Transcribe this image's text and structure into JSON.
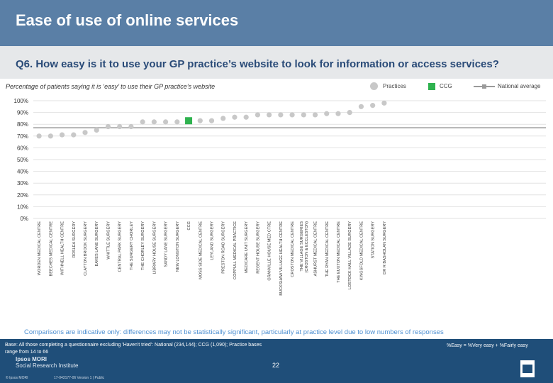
{
  "header": {
    "title": "Ease of use of online services",
    "question": "Q6. How easy is it to use your GP practice’s website to look for information or access services?",
    "subtitle": "Percentage of patients saying it is ‘easy’ to use their GP practice’s website"
  },
  "legend": {
    "practices": "Practices",
    "ccg": "CCG",
    "national": "National average"
  },
  "colors": {
    "practice": "#c8c8c8",
    "ccg": "#2fb24f",
    "national": "#9a9a9a",
    "header": "#5a7fa6",
    "footer": "#1f4e79"
  },
  "chart_data": {
    "type": "scatter",
    "title": "",
    "ylim": [
      0,
      100
    ],
    "yticks": [
      "0%",
      "10%",
      "20%",
      "30%",
      "40%",
      "50%",
      "60%",
      "70%",
      "80%",
      "90%",
      "100%"
    ],
    "national_average": 77,
    "categories": [
      "WORDEN MEDICAL CENTRE",
      "BEECHES MEDICAL CENTRE",
      "WITHNELL HEALTH CENTRE",
      "ROSLEA SURGERY",
      "CLAYTON BROOK SURGERY",
      "EAVES LANE SURGERY",
      "WHITTLE SURGERY",
      "CENTRAL PARK SURGERY",
      "THE SURGERY CHORLEY",
      "THE CHORLEY SURGERY",
      "LIBRARY HOUSE SURGERY",
      "SANDY LANE SURGERY",
      "NEW LONGTON SURGERY",
      "CCG",
      "MOSS SIDE MEDICAL CENTRE",
      "LEYLAND SURGERY",
      "PRESTON ROAD SURGERY",
      "COPPULL MEDICAL PRACTICE",
      "MEDICARE UNIT SURGERY",
      "REGENT HOUSE SURGERY",
      "GRANVILLE HOUSE MED CTRE",
      "BUCKSHAW VILLAGE HEALTH CENTRE",
      "CROSTON MEDICAL CENTRE",
      "THE VILLAGE SURGERIES (CROSTON & ECCLESTON)",
      "ASHURST MEDICAL CENTRE",
      "THE RYAN MEDICAL CENTRE",
      "THE EUXTON MEDICAL CENTRE",
      "LOSTOCK HALL VILLAGE SURGERY",
      "KINGSFOLD MEDICAL CENTRE",
      "STATION SURGERY",
      "DR R BASHOLAN SURGERY"
    ],
    "series": [
      {
        "name": "Practices",
        "values": [
          70,
          70,
          71,
          71,
          73,
          75,
          78,
          78,
          78,
          82,
          82,
          82,
          82,
          null,
          83,
          83,
          85,
          86,
          86,
          88,
          88,
          88,
          88,
          88,
          88,
          89,
          89,
          90,
          95,
          96,
          98
        ]
      },
      {
        "name": "CCG",
        "values": [
          null,
          null,
          null,
          null,
          null,
          null,
          null,
          null,
          null,
          null,
          null,
          null,
          null,
          83,
          null,
          null,
          null,
          null,
          null,
          null,
          null,
          null,
          null,
          null,
          null,
          null,
          null,
          null,
          null,
          null,
          null
        ]
      }
    ]
  },
  "footer": {
    "note": "Comparisons are indicative only: differences may not be statistically significant, particularly at practice level due to low numbers of responses",
    "base": "Base: All those completing a questionnaire excluding 'Haven't tried': National (234,144); CCG (1,090); Practice bases range from 14 to 66",
    "definition": "%Easy = %Very easy + %Fairly easy",
    "page": "22",
    "brand_line1": "Ipsos MORI",
    "brand_line2": "Social Research Institute",
    "copyright": "© Ipsos MORI",
    "job_ref": "17-043177-06 Version 1 | Public"
  }
}
